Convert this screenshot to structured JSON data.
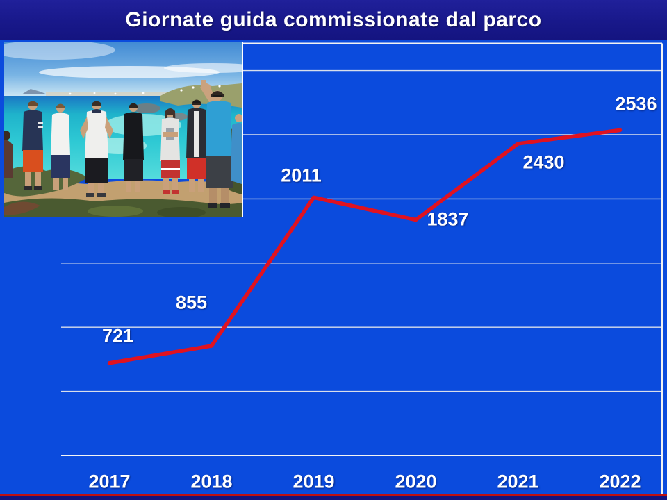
{
  "slide": {
    "title": "Giornate guida commissionate dal parco"
  },
  "photo": {
    "description": "Group of teenagers and a guide standing on a rocky cliff overlooking a turquoise cove"
  },
  "chart_data": {
    "type": "line",
    "title": "Giornate guida commissionate dal parco",
    "categories": [
      "2017",
      "2018",
      "2019",
      "2020",
      "2021",
      "2022"
    ],
    "series": [
      {
        "name": "Giornate guida",
        "values": [
          721,
          855,
          2011,
          1837,
          2430,
          2536
        ]
      }
    ],
    "xlabel": "",
    "ylabel": "",
    "ylim": [
      0,
      3250
    ],
    "gridline_values": [
      500,
      1000,
      1500,
      2000,
      2500,
      3000
    ],
    "grid": true,
    "legend": false,
    "line_color": "#e01220",
    "label_color": "#ffffff"
  },
  "colors": {
    "background": "#0b4bdd",
    "title_bar": "#18188a",
    "gridline": "#ebebeb",
    "series_line": "#e01220",
    "footer_line": "#c01010",
    "footer_bar": "#14147e"
  }
}
